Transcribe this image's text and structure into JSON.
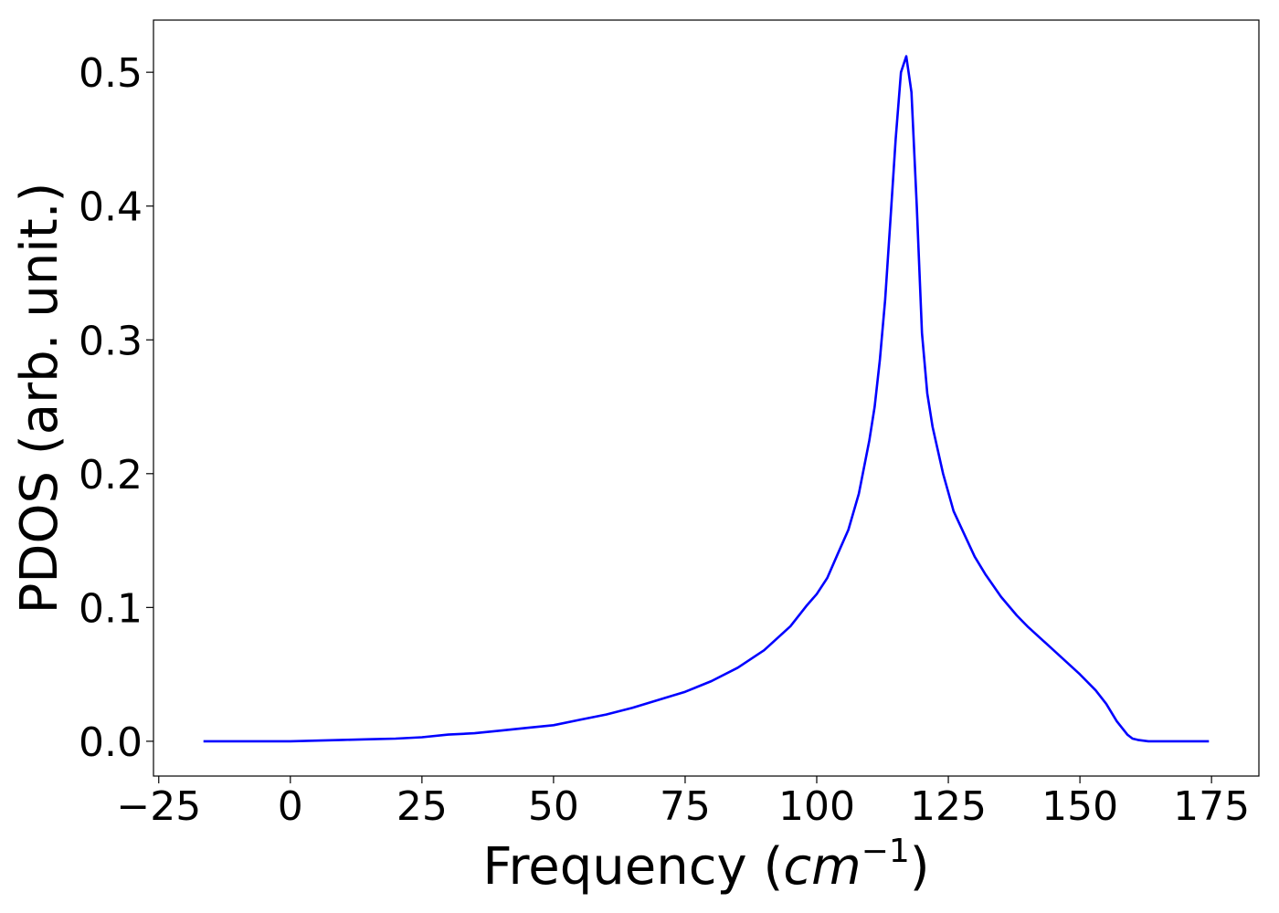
{
  "chart_data": {
    "type": "line",
    "xlabel": "Frequency (",
    "xlabel_math": "cm",
    "xlabel_exp": "−1",
    "xlabel_close": ")",
    "ylabel": "PDOS (arb. unit.)",
    "xlim": [
      -26,
      184
    ],
    "ylim": [
      -0.026,
      0.539
    ],
    "xticks": [
      -25,
      0,
      25,
      50,
      75,
      100,
      125,
      150,
      175
    ],
    "xtick_labels": [
      "−25",
      "0",
      "25",
      "50",
      "75",
      "100",
      "125",
      "150",
      "175"
    ],
    "yticks": [
      0.0,
      0.1,
      0.2,
      0.3,
      0.4,
      0.5
    ],
    "ytick_labels": [
      "0.0",
      "0.1",
      "0.2",
      "0.3",
      "0.4",
      "0.5"
    ],
    "grid": false,
    "series_color": "#0000ff",
    "x": [
      -16.5,
      0,
      5,
      10,
      15,
      20,
      25,
      30,
      35,
      40,
      45,
      50,
      55,
      60,
      65,
      70,
      75,
      80,
      85,
      90,
      95,
      98,
      100,
      102,
      104,
      106,
      108,
      110,
      111,
      112,
      113,
      114,
      115,
      116,
      117,
      118,
      119,
      120,
      121,
      122,
      124,
      126,
      128,
      130,
      132,
      135,
      138,
      140,
      145,
      150,
      153,
      155,
      157,
      159,
      160,
      161,
      163,
      165,
      170,
      174.5
    ],
    "y": [
      0.0,
      0.0,
      0.0005,
      0.001,
      0.0015,
      0.002,
      0.003,
      0.005,
      0.006,
      0.008,
      0.01,
      0.012,
      0.016,
      0.02,
      0.025,
      0.031,
      0.037,
      0.045,
      0.055,
      0.068,
      0.086,
      0.101,
      0.11,
      0.122,
      0.14,
      0.158,
      0.185,
      0.225,
      0.25,
      0.285,
      0.33,
      0.39,
      0.45,
      0.5,
      0.512,
      0.485,
      0.4,
      0.305,
      0.26,
      0.235,
      0.2,
      0.172,
      0.155,
      0.138,
      0.125,
      0.108,
      0.094,
      0.086,
      0.068,
      0.05,
      0.038,
      0.028,
      0.015,
      0.005,
      0.002,
      0.001,
      0.0,
      0.0,
      0.0,
      0.0
    ]
  }
}
